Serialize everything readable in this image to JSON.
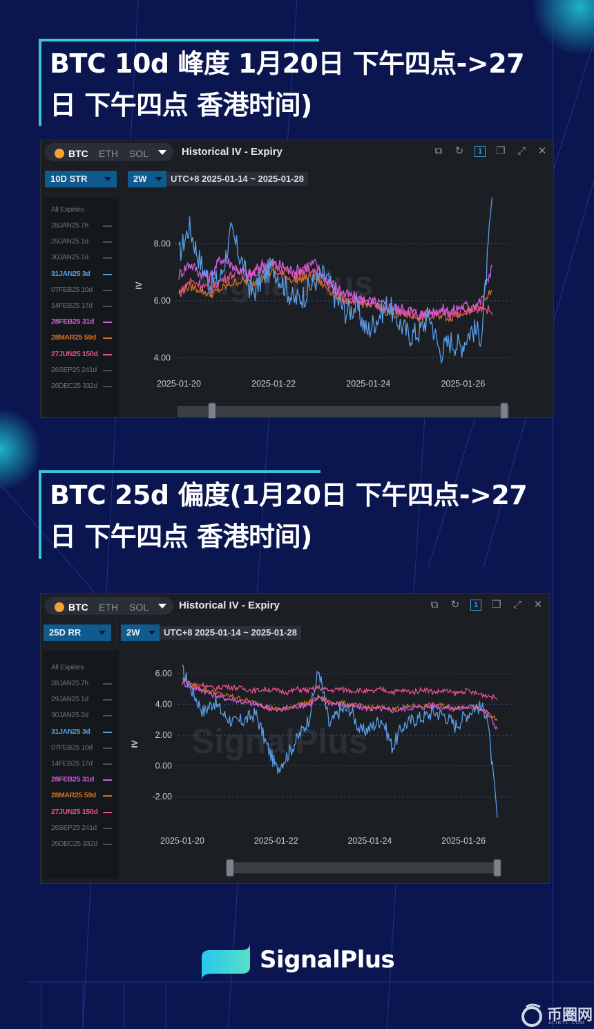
{
  "titles": {
    "t1_line1": "BTC 10d 峰度 1月20日 下午四点->27",
    "t1_line2": "日 下午四点 香港时间)",
    "t2_line1": "BTC 25d 偏度(1月20日 下午四点->27",
    "t2_line2": "日 下午四点 香港时间)"
  },
  "panel_common": {
    "coins": [
      "BTC",
      "ETH",
      "SOL"
    ],
    "panel_title": "Historical IV - Expiry",
    "window_button": "1",
    "period": "2W",
    "range": "UTC+8 2025-01-14 ~ 2025-01-28",
    "watermark": "SignalPlus",
    "legend_header": "All Expiries",
    "legend": [
      {
        "label": "28JAN25 7h",
        "active": false,
        "color": "#6d737c"
      },
      {
        "label": "29JAN25 1d",
        "active": false,
        "color": "#6d737c"
      },
      {
        "label": "30JAN25 2d",
        "active": false,
        "color": "#6d737c"
      },
      {
        "label": "31JAN25 3d",
        "active": true,
        "color": "#5b9ee8"
      },
      {
        "label": "07FEB25 10d",
        "active": false,
        "color": "#6d737c"
      },
      {
        "label": "14FEB25 17d",
        "active": false,
        "color": "#6d737c"
      },
      {
        "label": "28FEB25 31d",
        "active": true,
        "color": "#d65ce0"
      },
      {
        "label": "28MAR25 59d",
        "active": true,
        "color": "#d7711e"
      },
      {
        "label": "27JUN25 150d",
        "active": true,
        "color": "#e8508f"
      },
      {
        "label": "26SEP25 241d",
        "active": false,
        "color": "#6d737c"
      },
      {
        "label": "26DEC25 332d",
        "active": false,
        "color": "#6d737c"
      }
    ]
  },
  "panel1": {
    "metric": "10D STR"
  },
  "panel2": {
    "metric": "25D RR"
  },
  "brand": {
    "name": "SignalPlus"
  },
  "corner_watermark": {
    "name": "币圈网",
    "url": "ALIBTC.COM"
  },
  "chart_data": [
    {
      "type": "line",
      "title": "",
      "ylabel": "IV",
      "x_ticks": [
        "2025-01-20",
        "2025-01-22",
        "2025-01-24",
        "2025-01-26"
      ],
      "x_range": [
        "2025-01-20",
        "2025-01-27"
      ],
      "y_ticks": [
        4.0,
        6.0,
        8.0
      ],
      "ylim": [
        3.6,
        9.8
      ],
      "grid": "horizontal dashed",
      "series": [
        {
          "name": "31JAN25 3d",
          "color": "#5b9ee8",
          "values": [
            7.6,
            8.6,
            7.4,
            6.6,
            6.8,
            8.4,
            7.4,
            6.2,
            6.8,
            7.2,
            6.6,
            6.0,
            6.2,
            6.7,
            6.9,
            6.1,
            5.6,
            5.8,
            4.9,
            5.4,
            5.9,
            5.3,
            4.8,
            4.9,
            5.5,
            4.2,
            4.6,
            4.4,
            5.0,
            4.8,
            9.6
          ]
        },
        {
          "name": "28FEB25 31d",
          "color": "#d65ce0",
          "values": [
            6.9,
            7.3,
            7.0,
            6.8,
            7.5,
            7.3,
            7.0,
            6.9,
            7.3,
            7.3,
            7.2,
            7.0,
            7.2,
            7.3,
            6.8,
            6.5,
            6.2,
            6.1,
            6.0,
            5.9,
            5.8,
            5.7,
            5.7,
            5.5,
            5.6,
            5.7,
            5.6,
            5.8,
            5.8,
            6.0,
            7.3
          ]
        },
        {
          "name": "28MAR25 59d",
          "color": "#d7711e",
          "values": [
            6.3,
            6.5,
            6.4,
            6.2,
            6.4,
            6.6,
            6.7,
            6.6,
            6.8,
            7.0,
            6.9,
            6.7,
            6.8,
            6.8,
            6.5,
            6.2,
            6.0,
            5.9,
            5.9,
            5.8,
            5.6,
            5.5,
            5.5,
            5.4,
            5.4,
            5.5,
            5.4,
            5.6,
            5.7,
            5.8,
            6.4
          ]
        },
        {
          "name": "27JUN25 150d",
          "color": "#e8508f",
          "values": [
            6.2,
            6.7,
            6.6,
            6.4,
            6.7,
            6.9,
            7.0,
            6.9,
            7.1,
            7.2,
            7.1,
            6.9,
            7.0,
            7.0,
            6.7,
            6.3,
            6.1,
            6.0,
            5.9,
            5.8,
            5.7,
            5.6,
            5.6,
            5.5,
            5.6,
            5.6,
            5.5,
            5.6,
            5.6,
            5.8,
            5.6
          ]
        }
      ]
    },
    {
      "type": "line",
      "title": "",
      "ylabel": "IV",
      "x_ticks": [
        "2025-01-20",
        "2025-01-22",
        "2025-01-24",
        "2025-01-26"
      ],
      "x_range": [
        "2025-01-20",
        "2025-01-27"
      ],
      "y_ticks": [
        -2.0,
        0.0,
        2.0,
        4.0,
        6.0
      ],
      "ylim": [
        -3.8,
        7.0
      ],
      "grid": "horizontal dashed",
      "series": [
        {
          "name": "31JAN25 3d",
          "color": "#5b9ee8",
          "values": [
            6.2,
            4.8,
            3.5,
            4.2,
            3.3,
            2.8,
            3.0,
            3.4,
            1.4,
            -0.2,
            0.7,
            1.8,
            3.0,
            6.3,
            2.6,
            3.6,
            3.7,
            2.2,
            2.5,
            3.1,
            1.2,
            2.6,
            3.0,
            3.2,
            3.5,
            3.3,
            2.6,
            3.3,
            3.9,
            3.5,
            -3.4
          ]
        },
        {
          "name": "28FEB25 31d",
          "color": "#d65ce0",
          "values": [
            5.4,
            5.1,
            4.9,
            4.6,
            4.4,
            4.3,
            4.1,
            4.0,
            3.8,
            3.6,
            3.7,
            3.9,
            4.0,
            4.4,
            4.1,
            4.0,
            3.9,
            3.8,
            3.7,
            3.7,
            3.6,
            3.7,
            3.8,
            3.8,
            3.9,
            3.8,
            3.7,
            3.8,
            3.9,
            3.5,
            2.4
          ]
        },
        {
          "name": "28MAR25 59d",
          "color": "#d7711e",
          "values": [
            5.6,
            5.2,
            5.0,
            4.8,
            4.6,
            4.5,
            4.3,
            4.1,
            3.9,
            3.7,
            3.8,
            4.0,
            4.1,
            4.5,
            4.2,
            4.1,
            4.0,
            3.9,
            3.8,
            3.8,
            3.7,
            3.8,
            3.9,
            3.9,
            4.0,
            3.9,
            3.8,
            3.9,
            3.8,
            3.4,
            3.0
          ]
        },
        {
          "name": "27JUN25 150d",
          "color": "#e8508f",
          "values": [
            5.7,
            5.3,
            5.3,
            5.0,
            5.2,
            5.1,
            5.0,
            4.9,
            5.0,
            4.9,
            4.8,
            5.0,
            4.9,
            5.1,
            4.9,
            5.0,
            4.9,
            4.9,
            4.8,
            5.0,
            4.8,
            4.9,
            4.8,
            5.0,
            4.8,
            4.9,
            4.7,
            4.9,
            4.7,
            4.6,
            4.4
          ]
        }
      ]
    }
  ]
}
